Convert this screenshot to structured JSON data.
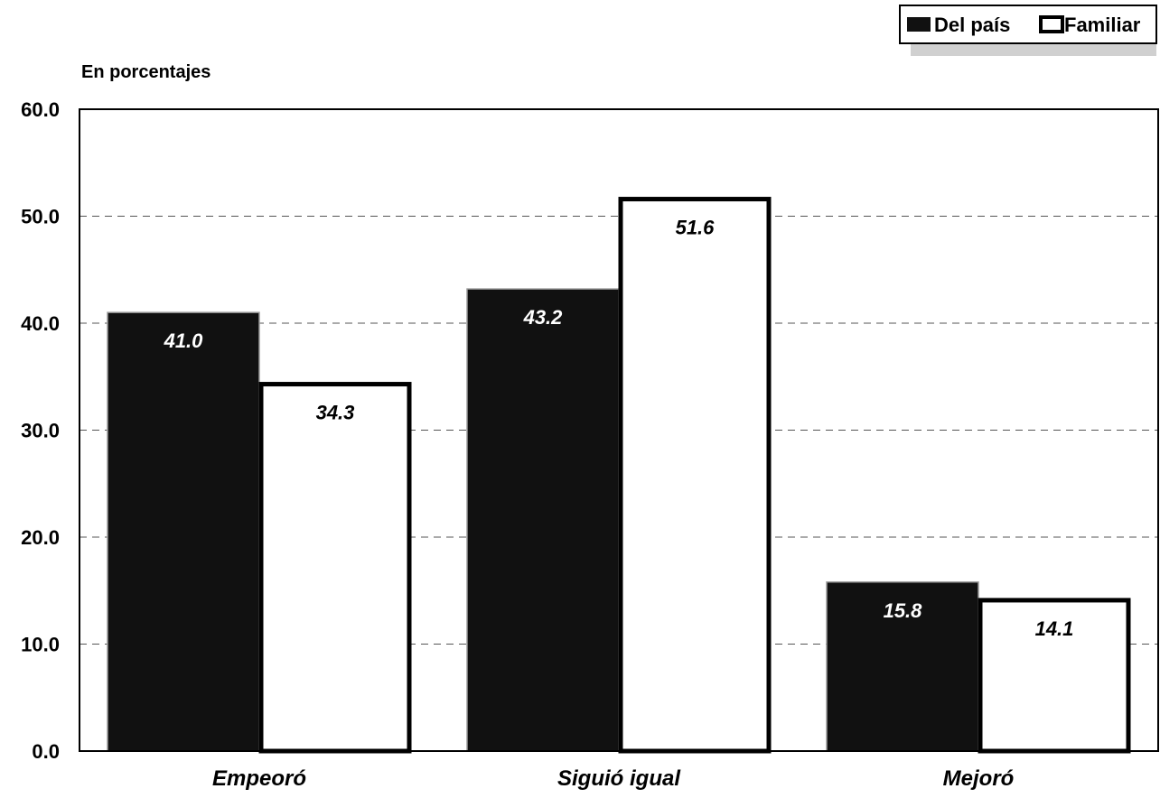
{
  "chart_data": {
    "type": "bar",
    "ylabel": "En porcentajes",
    "categories": [
      "Empeoró",
      "Siguió igual",
      "Mejoró"
    ],
    "series": [
      {
        "name": "Del país",
        "values": [
          41.0,
          43.2,
          15.8
        ],
        "fill": "#111111",
        "label_color": "#ffffff"
      },
      {
        "name": "Familiar",
        "values": [
          34.3,
          51.6,
          14.1
        ],
        "fill": "#ffffff",
        "label_color": "#000000"
      }
    ],
    "ylim": [
      0,
      60
    ],
    "yticks": [
      "0.0",
      "10.0",
      "20.0",
      "30.0",
      "40.0",
      "50.0",
      "60.0"
    ],
    "grid": "dashed horizontal",
    "legend_position": "top-right"
  }
}
